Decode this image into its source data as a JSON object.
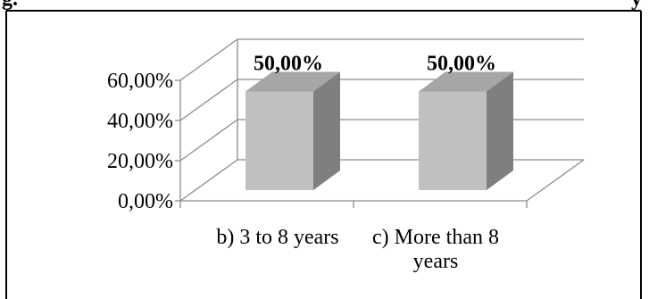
{
  "caption_fragment": "g.",
  "caption_tail": "y",
  "chart_data": {
    "type": "bar",
    "style": "3d-column",
    "categories": [
      "b) 3 to 8 years",
      "c) More than 8 years"
    ],
    "category_lines": [
      [
        "b) 3 to 8 years"
      ],
      [
        "c) More than 8",
        "years"
      ]
    ],
    "values": [
      0.5,
      0.5
    ],
    "data_labels": [
      "50,00%",
      "50,00%"
    ],
    "ylim": [
      0,
      0.6
    ],
    "yticks": [
      0,
      0.2,
      0.4,
      0.6
    ],
    "ytick_labels": [
      "0,00%",
      "20,00%",
      "40,00%",
      "60,00%"
    ],
    "grid": true,
    "legend": "none",
    "colors": {
      "bar_front": "#c0c0c0",
      "bar_top": "#a6a6a6",
      "bar_side": "#7f7f7f",
      "grid": "#8c8c8c",
      "border": "#000000"
    }
  }
}
